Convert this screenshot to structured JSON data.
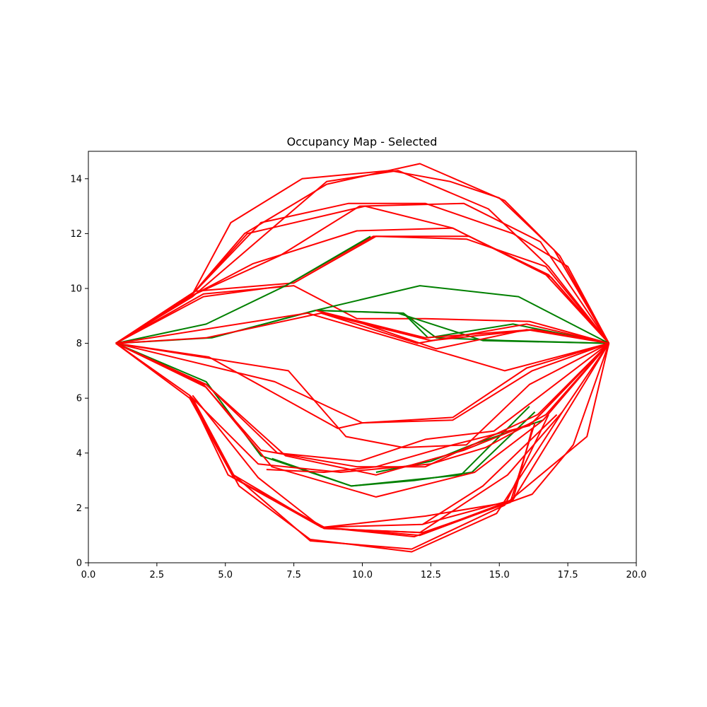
{
  "chart_data": {
    "type": "line",
    "title": "Occupancy Map - Selected",
    "xlabel": "",
    "ylabel": "",
    "xlim": [
      0,
      20
    ],
    "ylim": [
      0,
      15
    ],
    "x_ticks": [
      "0.0",
      "2.5",
      "5.0",
      "7.5",
      "10.0",
      "12.5",
      "15.0",
      "17.5",
      "20.0"
    ],
    "y_ticks": [
      "0",
      "2",
      "4",
      "6",
      "8",
      "10",
      "12",
      "14"
    ],
    "grid": false,
    "legend": "none",
    "colors": {
      "red": "#ff0000",
      "green": "#008000"
    },
    "paths": [
      {
        "color": "red",
        "points": [
          [
            1,
            8
          ],
          [
            3.8,
            9.8
          ],
          [
            5.2,
            12.4
          ],
          [
            7.8,
            14
          ],
          [
            11,
            14.3
          ],
          [
            13.2,
            13.9
          ],
          [
            15,
            13.3
          ],
          [
            17,
            11.4
          ],
          [
            19,
            8
          ]
        ]
      },
      {
        "color": "red",
        "points": [
          [
            1,
            8
          ],
          [
            3.8,
            9.8
          ],
          [
            5.7,
            12
          ],
          [
            8.7,
            13.8
          ],
          [
            12.1,
            14.55
          ],
          [
            15.2,
            13.2
          ],
          [
            17.2,
            11.2
          ],
          [
            19,
            8
          ]
        ]
      },
      {
        "color": "red",
        "points": [
          [
            1,
            8
          ],
          [
            3.8,
            9.7
          ],
          [
            8.7,
            13.9
          ],
          [
            11.3,
            14.3
          ],
          [
            14.6,
            12.9
          ],
          [
            16.8,
            10.8
          ],
          [
            19,
            8
          ]
        ]
      },
      {
        "color": "red",
        "points": [
          [
            1,
            8
          ],
          [
            3.8,
            9.8
          ],
          [
            6.3,
            12.4
          ],
          [
            9.5,
            13.1
          ],
          [
            12.3,
            13.1
          ],
          [
            15.5,
            12
          ],
          [
            17.5,
            10.8
          ],
          [
            19,
            8
          ]
        ]
      },
      {
        "color": "red",
        "points": [
          [
            1,
            8
          ],
          [
            3.9,
            9.9
          ],
          [
            5.8,
            12
          ],
          [
            10.1,
            13
          ],
          [
            13.3,
            12.2
          ],
          [
            16.7,
            10.5
          ],
          [
            19,
            8
          ]
        ]
      },
      {
        "color": "red",
        "points": [
          [
            1,
            8
          ],
          [
            3.9,
            9.8
          ],
          [
            7,
            11.2
          ],
          [
            9.9,
            13
          ],
          [
            13.7,
            13.1
          ],
          [
            16.5,
            11.7
          ],
          [
            19,
            8
          ]
        ]
      },
      {
        "color": "red",
        "points": [
          [
            1,
            8
          ],
          [
            3.9,
            9.9
          ],
          [
            7.5,
            10.2
          ],
          [
            10.5,
            11.9
          ],
          [
            13.8,
            11.8
          ],
          [
            16.7,
            10.8
          ],
          [
            19,
            8
          ]
        ]
      },
      {
        "color": "red",
        "points": [
          [
            1,
            8
          ],
          [
            3.9,
            9.8
          ],
          [
            6,
            10.9
          ],
          [
            9.8,
            12.1
          ],
          [
            13.3,
            12.2
          ],
          [
            16.9,
            10.4
          ],
          [
            19,
            8
          ]
        ]
      },
      {
        "color": "red",
        "points": [
          [
            1,
            8
          ],
          [
            4.2,
            9.7
          ],
          [
            7.2,
            10.1
          ],
          [
            10.4,
            11.9
          ],
          [
            13.9,
            11.9
          ],
          [
            16.8,
            10.5
          ],
          [
            19,
            8
          ]
        ]
      },
      {
        "color": "red",
        "points": [
          [
            1,
            8
          ],
          [
            4.2,
            9.8
          ],
          [
            7.5,
            10.1
          ],
          [
            9.8,
            8.9
          ],
          [
            12.3,
            8.9
          ],
          [
            16.1,
            8.8
          ],
          [
            19,
            8
          ]
        ]
      },
      {
        "color": "green",
        "points": [
          [
            1,
            8
          ],
          [
            4.3,
            8.7
          ],
          [
            7.2,
            10.1
          ],
          [
            10.3,
            11.9
          ]
        ]
      },
      {
        "color": "green",
        "points": [
          [
            1,
            8
          ],
          [
            4.5,
            8.2
          ],
          [
            8.3,
            9.2
          ],
          [
            12.1,
            10.1
          ],
          [
            15.7,
            9.7
          ],
          [
            19,
            8
          ]
        ]
      },
      {
        "color": "green",
        "points": [
          [
            4.5,
            8.2
          ],
          [
            8.3,
            9.2
          ],
          [
            11.5,
            9.1
          ],
          [
            12.7,
            8.2
          ],
          [
            15.2,
            8.1
          ],
          [
            19,
            8
          ]
        ]
      },
      {
        "color": "green",
        "points": [
          [
            8.3,
            9.2
          ],
          [
            11.3,
            9.1
          ],
          [
            14.4,
            8.1
          ],
          [
            19,
            8
          ]
        ]
      },
      {
        "color": "green",
        "points": [
          [
            11.5,
            9.1
          ],
          [
            12.4,
            8.2
          ],
          [
            15.5,
            8.7
          ],
          [
            19,
            8
          ]
        ]
      },
      {
        "color": "red",
        "points": [
          [
            1,
            8
          ],
          [
            4.3,
            8.2
          ],
          [
            8.5,
            9.1
          ],
          [
            12,
            8
          ],
          [
            16,
            8.7
          ],
          [
            19,
            8
          ]
        ]
      },
      {
        "color": "red",
        "points": [
          [
            8.3,
            9.2
          ],
          [
            12.3,
            8.2
          ],
          [
            16.2,
            8.5
          ],
          [
            19,
            8
          ]
        ]
      },
      {
        "color": "red",
        "points": [
          [
            8.5,
            9.1
          ],
          [
            12.5,
            8.1
          ],
          [
            16.3,
            8.5
          ],
          [
            19,
            8
          ]
        ]
      },
      {
        "color": "red",
        "points": [
          [
            9.5,
            8.9
          ],
          [
            12.7,
            7.8
          ],
          [
            16,
            8.5
          ],
          [
            19,
            8
          ]
        ]
      },
      {
        "color": "red",
        "points": [
          [
            1,
            8
          ],
          [
            8,
            9.1
          ],
          [
            15.2,
            7
          ],
          [
            19,
            8
          ]
        ]
      },
      {
        "color": "red",
        "points": [
          [
            1,
            8
          ],
          [
            4.4,
            7.5
          ],
          [
            9.1,
            4.9
          ],
          [
            10,
            5.1
          ],
          [
            13.3,
            5.3
          ],
          [
            16,
            7.1
          ],
          [
            19,
            8
          ]
        ]
      },
      {
        "color": "red",
        "points": [
          [
            1,
            8
          ],
          [
            7.3,
            7
          ],
          [
            9.4,
            4.6
          ],
          [
            11.5,
            4.2
          ],
          [
            13.8,
            4.3
          ],
          [
            16.1,
            6.5
          ],
          [
            19,
            8
          ]
        ]
      },
      {
        "color": "red",
        "points": [
          [
            1,
            8
          ],
          [
            6.8,
            6.6
          ],
          [
            10,
            5.1
          ],
          [
            13.3,
            5.2
          ],
          [
            16.2,
            7
          ],
          [
            19,
            8
          ]
        ]
      },
      {
        "color": "green",
        "points": [
          [
            1,
            8
          ],
          [
            4.3,
            6.6
          ],
          [
            6.3,
            3.9
          ],
          [
            9.6,
            2.8
          ],
          [
            13.6,
            3.2
          ],
          [
            16.1,
            5.7
          ]
        ]
      },
      {
        "color": "green",
        "points": [
          [
            6.7,
            3.8
          ],
          [
            9.6,
            2.8
          ],
          [
            11.9,
            3
          ],
          [
            14,
            3.3
          ],
          [
            16.3,
            5.5
          ]
        ]
      },
      {
        "color": "green",
        "points": [
          [
            10.5,
            3.3
          ],
          [
            12.5,
            3.7
          ],
          [
            14,
            4.3
          ],
          [
            16.6,
            5.2
          ]
        ]
      },
      {
        "color": "red",
        "points": [
          [
            1,
            8
          ],
          [
            4.2,
            6.5
          ],
          [
            6.3,
            4.1
          ],
          [
            9.8,
            3.5
          ],
          [
            12.3,
            3.5
          ],
          [
            16.4,
            5.4
          ],
          [
            19,
            8
          ]
        ]
      },
      {
        "color": "red",
        "points": [
          [
            1,
            8
          ],
          [
            4.3,
            6.4
          ],
          [
            6.7,
            3.5
          ],
          [
            10.5,
            2.4
          ],
          [
            14.1,
            3.3
          ],
          [
            16.6,
            5.2
          ],
          [
            19,
            8
          ]
        ]
      },
      {
        "color": "red",
        "points": [
          [
            1,
            8
          ],
          [
            4.3,
            6.5
          ],
          [
            7.2,
            3.9
          ],
          [
            10.5,
            3.2
          ],
          [
            13.7,
            4.1
          ],
          [
            16.2,
            5.1
          ],
          [
            19,
            8
          ]
        ]
      },
      {
        "color": "red",
        "points": [
          [
            1,
            8
          ],
          [
            4.3,
            6.5
          ],
          [
            6.9,
            4
          ],
          [
            9.9,
            3.7
          ],
          [
            12.3,
            4.5
          ],
          [
            14.8,
            4.8
          ],
          [
            19,
            8
          ]
        ]
      },
      {
        "color": "red",
        "points": [
          [
            3.7,
            6.1
          ],
          [
            6.2,
            3.6
          ],
          [
            9.2,
            3.3
          ],
          [
            12.5,
            3.6
          ],
          [
            14.5,
            4.2
          ],
          [
            16.7,
            5.4
          ],
          [
            19,
            8
          ]
        ]
      },
      {
        "color": "red",
        "points": [
          [
            6.5,
            3.4
          ],
          [
            8.6,
            3.3
          ],
          [
            10.5,
            3.5
          ],
          [
            13.3,
            4.3
          ],
          [
            16.1,
            5
          ],
          [
            19,
            8
          ]
        ]
      },
      {
        "color": "red",
        "points": [
          [
            1,
            8
          ],
          [
            3.7,
            6.1
          ],
          [
            5.1,
            3.2
          ],
          [
            8.5,
            1.3
          ],
          [
            12.1,
            1
          ],
          [
            14.8,
            2
          ],
          [
            16.2,
            2.5
          ],
          [
            17.7,
            4.3
          ],
          [
            19,
            8
          ]
        ]
      },
      {
        "color": "red",
        "points": [
          [
            1,
            8
          ],
          [
            3.7,
            6
          ],
          [
            5.3,
            3.1
          ],
          [
            8.6,
            1.3
          ],
          [
            12.3,
            1.7
          ],
          [
            15.3,
            2.2
          ],
          [
            18.2,
            4.6
          ],
          [
            19,
            8
          ]
        ]
      },
      {
        "color": "red",
        "points": [
          [
            3.7,
            6.1
          ],
          [
            5.5,
            2.8
          ],
          [
            8.1,
            0.85
          ],
          [
            11.8,
            0.4
          ],
          [
            14.9,
            1.8
          ],
          [
            17.3,
            5.5
          ],
          [
            19,
            8
          ]
        ]
      },
      {
        "color": "red",
        "points": [
          [
            3.7,
            6
          ],
          [
            5.3,
            3.2
          ],
          [
            8.1,
            0.8
          ],
          [
            11.8,
            0.5
          ],
          [
            15.2,
            2.1
          ],
          [
            16.8,
            5.4
          ]
        ]
      },
      {
        "color": "red",
        "points": [
          [
            3.8,
            6
          ],
          [
            5.3,
            3.2
          ],
          [
            8.6,
            1.25
          ],
          [
            12.2,
            1.1
          ],
          [
            15.4,
            2.2
          ],
          [
            16.3,
            5.1
          ]
        ]
      },
      {
        "color": "red",
        "points": [
          [
            3.8,
            6.1
          ],
          [
            6.2,
            3.1
          ],
          [
            8.5,
            1.3
          ],
          [
            11.9,
            0.95
          ],
          [
            15.5,
            2.3
          ],
          [
            16.2,
            4.9
          ]
        ]
      },
      {
        "color": "red",
        "points": [
          [
            8.6,
            1.3
          ],
          [
            12.2,
            1.4
          ],
          [
            15.5,
            2.3
          ],
          [
            19,
            8
          ]
        ]
      },
      {
        "color": "red",
        "points": [
          [
            8.6,
            1.25
          ],
          [
            12.1,
            1.1
          ],
          [
            15.3,
            3.2
          ],
          [
            17.3,
            5.5
          ]
        ]
      },
      {
        "color": "red",
        "points": [
          [
            12.2,
            1.4
          ],
          [
            14.4,
            2.8
          ],
          [
            17.1,
            5.4
          ]
        ]
      }
    ]
  }
}
